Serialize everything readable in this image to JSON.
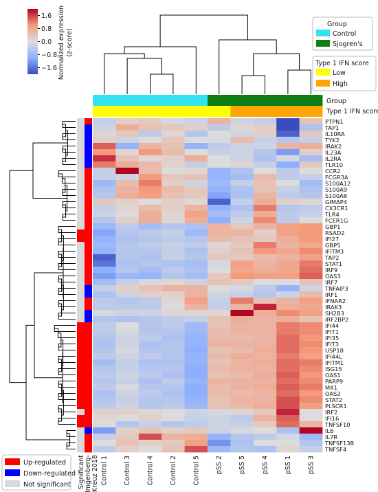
{
  "chart_data": {
    "type": "heatmap",
    "colorbar": {
      "label": "Normalized expression\n(z-score)",
      "label_lines": [
        "Normalized expression",
        "(z-score)"
      ],
      "ticks": [
        "1.6",
        "0.8",
        "0.0",
        "−0.8",
        "−1.6"
      ],
      "tick_values": [
        1.6,
        0.8,
        0.0,
        -0.8,
        -1.6
      ],
      "range": [
        -2.0,
        2.0
      ],
      "low_color": "#3b4cc0",
      "mid_color": "#dddcdc",
      "high_color": "#b40426"
    },
    "columns": [
      "Control 1",
      "Control 3",
      "Control 4",
      "Control 2",
      "Control 5",
      "pSS 2",
      "pSS 5",
      "pSS 4",
      "pSS 1",
      "pSS 3"
    ],
    "rows": [
      "PTPN1",
      "TAP1",
      "IL10RA",
      "TYK2",
      "IRAK2",
      "IL23A",
      "IL2RA",
      "TLR10",
      "CCR2",
      "FCGR3A",
      "S100A12",
      "S100A9",
      "S100A8",
      "GIMAP4",
      "CX3CR1",
      "TLR4",
      "FCER1G",
      "GBP1",
      "RSAD2",
      "IFI27",
      "GBP5",
      "IFITM3",
      "TAP2",
      "STAT1",
      "IRF9",
      "OAS3",
      "IRF7",
      "TNFAIP3",
      "IRF1",
      "IFNAR2",
      "IRAK3",
      "SH2B3",
      "IRF2BP2",
      "IFI44",
      "IFIT1",
      "IFI35",
      "IFIT3",
      "USP18",
      "IFI44L",
      "IFITM1",
      "ISG15",
      "OAS1",
      "PARP9",
      "MX1",
      "OAS2",
      "STAT2",
      "PLSCR1",
      "IRF2",
      "IFI16",
      "TNFSF10",
      "IL6",
      "IL7R",
      "TNFSF13B",
      "TNFSF4"
    ],
    "values": [
      [
        -0.3,
        0.2,
        0.3,
        -0.1,
        -0.2,
        0.6,
        -0.2,
        -0.3,
        -2.0,
        0.4
      ],
      [
        -0.2,
        0.7,
        0.4,
        0.3,
        0.2,
        -0.4,
        0.1,
        0.2,
        -2.0,
        -0.6
      ],
      [
        0.1,
        0.3,
        -0.4,
        0.1,
        -0.5,
        0.0,
        -0.2,
        0.2,
        -1.8,
        0.3
      ],
      [
        0.2,
        -0.2,
        0.0,
        0.3,
        0.0,
        -0.1,
        0.5,
        -0.3,
        -0.5,
        -0.3
      ],
      [
        1.4,
        -0.9,
        0.6,
        0.4,
        -0.9,
        -0.4,
        -0.2,
        -0.2,
        0.6,
        0.7
      ],
      [
        1.0,
        0.1,
        1.0,
        0.5,
        0.0,
        -0.3,
        -0.2,
        -0.5,
        -1.2,
        0.2
      ],
      [
        1.7,
        0.4,
        0.1,
        0.2,
        0.7,
        0.0,
        -0.2,
        -0.6,
        -0.1,
        -0.7
      ],
      [
        1.2,
        0.7,
        0.5,
        0.2,
        -0.3,
        0.0,
        0.1,
        -0.3,
        -1.0,
        0.3
      ],
      [
        -0.3,
        2.0,
        0.5,
        0.0,
        0.1,
        -0.9,
        -0.6,
        0.0,
        -0.4,
        0.0
      ],
      [
        -0.3,
        -0.2,
        1.0,
        0.3,
        0.4,
        -0.9,
        -0.7,
        0.5,
        -0.4,
        -0.3
      ],
      [
        -0.8,
        0.5,
        1.2,
        0.2,
        -0.2,
        -0.8,
        -0.3,
        0.4,
        0.0,
        -0.7
      ],
      [
        -0.6,
        0.6,
        1.0,
        0.5,
        0.3,
        -0.9,
        -0.6,
        0.4,
        -0.3,
        -0.6
      ],
      [
        -0.5,
        0.7,
        0.9,
        0.4,
        0.3,
        -1.1,
        -0.6,
        0.6,
        -0.4,
        -0.5
      ],
      [
        0.3,
        0.2,
        0.0,
        0.2,
        0.1,
        -1.8,
        -0.3,
        0.7,
        0.2,
        0.1
      ],
      [
        -0.3,
        0.1,
        0.5,
        0.2,
        0.6,
        -0.9,
        -0.6,
        1.2,
        -0.5,
        -0.4
      ],
      [
        -0.2,
        0.0,
        0.7,
        0.1,
        0.9,
        -0.7,
        -0.4,
        0.7,
        -0.4,
        -0.3
      ],
      [
        -0.5,
        0.2,
        0.7,
        0.1,
        0.7,
        -1.0,
        -0.2,
        1.1,
        -0.4,
        0.0
      ],
      [
        -0.8,
        -0.4,
        -0.7,
        -0.5,
        -0.6,
        0.6,
        0.3,
        0.6,
        0.9,
        1.0
      ],
      [
        -1.1,
        -0.5,
        -0.4,
        -0.3,
        -0.8,
        0.6,
        0.6,
        0.2,
        0.9,
        1.0
      ],
      [
        -0.9,
        -0.6,
        -0.5,
        -0.4,
        -0.5,
        0.5,
        0.4,
        0.3,
        0.7,
        1.0
      ],
      [
        -0.8,
        -0.5,
        -0.4,
        -0.3,
        -0.4,
        0.1,
        0.3,
        1.2,
        0.6,
        0.8
      ],
      [
        -0.9,
        -0.5,
        -0.5,
        -0.3,
        -0.6,
        0.2,
        0.4,
        1.0,
        0.8,
        1.1
      ],
      [
        -1.8,
        -0.5,
        -0.6,
        -0.3,
        -0.5,
        0.3,
        0.3,
        0.5,
        0.6,
        0.9
      ],
      [
        -1.6,
        -0.6,
        -0.5,
        -0.6,
        -0.7,
        -0.1,
        0.9,
        0.6,
        0.8,
        1.2
      ],
      [
        -1.0,
        -0.5,
        -0.7,
        -0.4,
        -0.6,
        0.0,
        0.8,
        0.7,
        0.8,
        1.3
      ],
      [
        -1.2,
        -0.8,
        -0.9,
        -0.5,
        -0.7,
        0.3,
        1.0,
        0.9,
        0.9,
        1.4
      ],
      [
        -0.7,
        -0.3,
        -0.1,
        0.1,
        -0.2,
        0.4,
        0.3,
        0.0,
        0.0,
        0.4
      ],
      [
        -0.3,
        0.2,
        0.4,
        0.6,
        0.6,
        0.0,
        -0.1,
        -0.4,
        -0.9,
        -0.2
      ],
      [
        -0.6,
        -0.2,
        0.2,
        0.2,
        0.6,
        -0.2,
        -0.3,
        -0.5,
        -0.2,
        0.5
      ],
      [
        -0.4,
        -0.5,
        -0.4,
        0.1,
        0.9,
        -0.3,
        1.2,
        0.4,
        0.6,
        0.9
      ],
      [
        -0.4,
        -0.4,
        -0.4,
        0.0,
        0.6,
        -0.3,
        0.6,
        1.8,
        0.7,
        0.8
      ],
      [
        -0.1,
        -0.2,
        -0.2,
        0.1,
        0.1,
        0.1,
        2.0,
        0.7,
        1.1,
        0.9
      ],
      [
        -0.5,
        -0.6,
        -0.5,
        -0.4,
        -0.3,
        0.4,
        0.7,
        0.6,
        0.7,
        0.4
      ],
      [
        -0.4,
        0.0,
        -0.5,
        -0.4,
        -0.8,
        0.4,
        0.6,
        0.6,
        1.2,
        1.1
      ],
      [
        -0.4,
        -0.1,
        -0.5,
        -0.5,
        -0.8,
        0.5,
        0.6,
        0.6,
        1.2,
        1.1
      ],
      [
        -0.5,
        -0.2,
        -0.4,
        -0.6,
        -0.9,
        0.5,
        0.5,
        0.6,
        1.3,
        1.0
      ],
      [
        -0.6,
        -0.2,
        -0.6,
        -0.5,
        -0.9,
        0.6,
        0.6,
        0.6,
        1.3,
        1.1
      ],
      [
        -0.5,
        -0.1,
        -0.5,
        -0.5,
        -1.0,
        0.4,
        0.5,
        0.7,
        1.3,
        1.0
      ],
      [
        -0.4,
        -0.2,
        -0.4,
        -0.5,
        -0.9,
        0.5,
        0.7,
        0.6,
        1.2,
        0.9
      ],
      [
        -0.7,
        -0.3,
        -0.6,
        -0.6,
        -0.9,
        0.4,
        0.6,
        0.7,
        1.3,
        1.2
      ],
      [
        -0.5,
        -0.3,
        -0.5,
        -0.5,
        -1.0,
        0.5,
        0.6,
        0.6,
        1.3,
        1.1
      ],
      [
        -0.4,
        -0.2,
        -0.4,
        -0.6,
        -1.0,
        0.4,
        0.5,
        0.7,
        1.4,
        1.0
      ],
      [
        -0.5,
        -0.3,
        -0.6,
        -0.4,
        -0.9,
        0.6,
        0.6,
        0.6,
        1.3,
        1.1
      ],
      [
        -0.4,
        -0.1,
        -0.5,
        -0.5,
        -1.0,
        0.5,
        0.6,
        0.7,
        1.4,
        1.2
      ],
      [
        -0.6,
        -0.2,
        -0.4,
        -0.6,
        -1.0,
        0.5,
        0.5,
        0.6,
        1.3,
        1.0
      ],
      [
        -0.5,
        -0.3,
        -0.5,
        -0.5,
        -0.9,
        0.4,
        0.6,
        0.6,
        1.5,
        1.1
      ],
      [
        -0.4,
        -0.2,
        -0.5,
        -0.4,
        -0.8,
        0.4,
        0.5,
        0.7,
        1.5,
        0.9
      ],
      [
        0.2,
        0.2,
        0.1,
        0.0,
        -0.2,
        -0.1,
        0.1,
        0.3,
        1.8,
        0.0
      ],
      [
        0.1,
        0.0,
        0.2,
        0.0,
        -0.3,
        -0.2,
        -0.4,
        0.6,
        1.4,
        0.0
      ],
      [
        0.0,
        -0.5,
        -0.3,
        -0.5,
        -0.4,
        -0.2,
        -0.3,
        0.3,
        1.3,
        0.6
      ],
      [
        -1.2,
        0.2,
        0.4,
        0.2,
        0.3,
        -0.2,
        -0.1,
        0.0,
        -0.6,
        2.0
      ],
      [
        -0.3,
        0.3,
        1.5,
        0.6,
        0.7,
        -0.9,
        -0.5,
        -0.4,
        -0.1,
        -0.8
      ],
      [
        0.0,
        0.4,
        0.2,
        0.3,
        0.9,
        -1.3,
        -0.6,
        0.0,
        0.0,
        -0.5
      ],
      [
        -0.4,
        0.2,
        0.0,
        0.4,
        1.5,
        -0.8,
        -0.5,
        -0.6,
        0.1,
        -0.3
      ]
    ],
    "col_annotations": [
      {
        "name": "Group",
        "values": [
          "Control",
          "Control",
          "Control",
          "Control",
          "Control",
          "Sjogren's",
          "Sjogren's",
          "Sjogren's",
          "Sjogren's",
          "Sjogren's"
        ]
      },
      {
        "name": "Type 1 IFN score",
        "values": [
          "Low",
          "Low",
          "Low",
          "Low",
          "Low",
          "Low",
          "High",
          "High",
          "High",
          "High"
        ]
      }
    ],
    "row_annotations": [
      {
        "name": "Significant",
        "values": [
          "Not significant",
          "Not significant",
          "Not significant",
          "Not significant",
          "Not significant",
          "Not significant",
          "Not significant",
          "Not significant",
          "Not significant",
          "Not significant",
          "Not significant",
          "Not significant",
          "Not significant",
          "Not significant",
          "Not significant",
          "Not significant",
          "Not significant",
          "Not significant",
          "Up-regulated",
          "Up-regulated",
          "Not significant",
          "Not significant",
          "Not significant",
          "Not significant",
          "Not significant",
          "Not significant",
          "Not significant",
          "Not significant",
          "Not significant",
          "Not significant",
          "Not significant",
          "Not significant",
          "Not significant",
          "Up-regulated",
          "Up-regulated",
          "Up-regulated",
          "Up-regulated",
          "Up-regulated",
          "Up-regulated",
          "Up-regulated",
          "Up-regulated",
          "Up-regulated",
          "Up-regulated",
          "Up-regulated",
          "Up-regulated",
          "Up-regulated",
          "Up-regulated",
          "Not significant",
          "Up-regulated",
          "Up-regulated",
          "Not significant",
          "Not significant",
          "Not significant",
          "Not significant"
        ]
      },
      {
        "name": "Imgenberg-Kreuz 2018",
        "values": [
          "Up-regulated",
          "Down-regulated",
          "Down-regulated",
          "Down-regulated",
          "Down-regulated",
          "Down-regulated",
          "Down-regulated",
          "Down-regulated",
          "Up-regulated",
          "Up-regulated",
          "Up-regulated",
          "Up-regulated",
          "Up-regulated",
          "Up-regulated",
          "Up-regulated",
          "Up-regulated",
          "Up-regulated",
          "Up-regulated",
          "Up-regulated",
          "Up-regulated",
          "Up-regulated",
          "Up-regulated",
          "Up-regulated",
          "Up-regulated",
          "Up-regulated",
          "Up-regulated",
          "Up-regulated",
          "Down-regulated",
          "Down-regulated",
          "Up-regulated",
          "Up-regulated",
          "Down-regulated",
          "Down-regulated",
          "Up-regulated",
          "Up-regulated",
          "Up-regulated",
          "Up-regulated",
          "Up-regulated",
          "Up-regulated",
          "Up-regulated",
          "Up-regulated",
          "Up-regulated",
          "Up-regulated",
          "Up-regulated",
          "Up-regulated",
          "Up-regulated",
          "Up-regulated",
          "Up-regulated",
          "Up-regulated",
          "Up-regulated",
          "Down-regulated",
          "Up-regulated",
          "Up-regulated",
          "Up-regulated"
        ]
      }
    ],
    "row_annotation_labels": [
      "Significant",
      "Imgenberg-",
      "Kreuz 2018"
    ],
    "legends": [
      {
        "title": "Group",
        "position": "top-right",
        "entries": [
          {
            "label": "Control",
            "color": "#33e3ee"
          },
          {
            "label": "Sjogren's",
            "color": "#0f7d12"
          }
        ]
      },
      {
        "title": "Type 1 IFN score",
        "position": "right",
        "entries": [
          {
            "label": "Low",
            "color": "#ffff00"
          },
          {
            "label": "High",
            "color": "#ffa500"
          }
        ]
      },
      {
        "title": "",
        "position": "bottom-left",
        "entries": [
          {
            "label": "Up-regulated",
            "color": "#ff0000"
          },
          {
            "label": "Down-regulated",
            "color": "#0000ff"
          },
          {
            "label": "Not significant",
            "color": "#d9d9d9"
          }
        ]
      }
    ],
    "annotation_colors": {
      "Control": "#33e3ee",
      "Sjogren's": "#0f7d12",
      "Low": "#ffff00",
      "High": "#ffa500",
      "Up-regulated": "#ff0000",
      "Down-regulated": "#0000ff",
      "Not significant": "#d9d9d9"
    },
    "col_annotation_labels": [
      "Group",
      "Type 1 IFN score"
    ]
  }
}
